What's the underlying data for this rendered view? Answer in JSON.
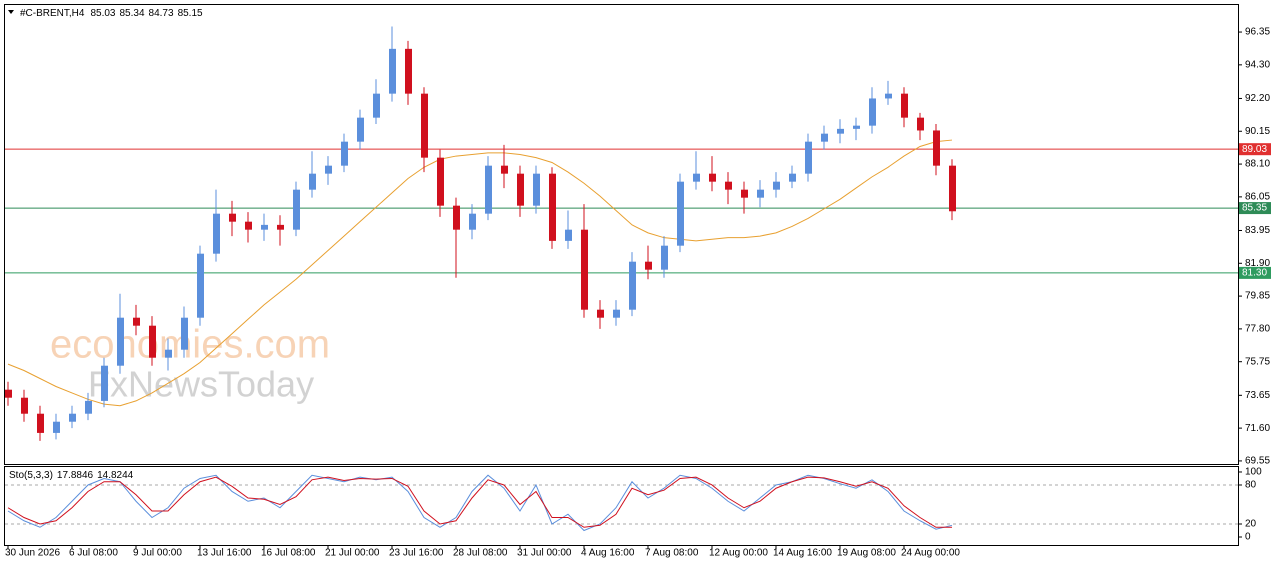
{
  "chart_data": {
    "type": "candlestick",
    "header": {
      "symbol": "#C-BRENT,H4",
      "open": 85.03,
      "high": 85.34,
      "low": 84.73,
      "close": 85.15
    },
    "watermark": [
      "economies.com",
      "FxNewsToday"
    ],
    "categories": [
      "30 Jun 2026",
      null,
      null,
      null,
      "6 Jul 08:00",
      null,
      null,
      null,
      "9 Jul 00:00",
      null,
      null,
      null,
      "13 Jul 16:00",
      null,
      null,
      null,
      "16 Jul 08:00",
      null,
      null,
      null,
      "21 Jul 00:00",
      null,
      null,
      null,
      "23 Jul 16:00",
      null,
      null,
      null,
      "28 Jul 08:00",
      null,
      null,
      null,
      "31 Jul 00:00",
      null,
      null,
      null,
      "4 Aug 16:00",
      null,
      null,
      null,
      "7 Aug 08:00",
      null,
      null,
      null,
      "12 Aug 00:00",
      null,
      null,
      null,
      "14 Aug 16:00",
      null,
      null,
      null,
      "19 Aug 08:00",
      null,
      null,
      null,
      "24 Aug 00:00",
      null,
      null,
      null
    ],
    "open": [
      74.0,
      73.5,
      72.5,
      71.3,
      72.0,
      72.5,
      73.3,
      75.5,
      78.5,
      78.0,
      76.0,
      76.5,
      78.5,
      82.5,
      85.0,
      84.5,
      84.0,
      84.3,
      84.0,
      86.5,
      87.5,
      88.0,
      89.5,
      91.0,
      92.5,
      95.3,
      92.5,
      88.5,
      85.5,
      84.0,
      85.0,
      88.0,
      87.5,
      85.5,
      87.5,
      83.3,
      84.0,
      79.0,
      78.5,
      79.0,
      82.0,
      81.5,
      83.0,
      87.0,
      87.5,
      87.0,
      86.5,
      86.0,
      86.5,
      87.0,
      87.5,
      89.5,
      90.0,
      90.3,
      90.5,
      92.2,
      92.5,
      91.0,
      90.2,
      88.0
    ],
    "high": [
      74.5,
      74.0,
      73.0,
      72.5,
      73.0,
      73.8,
      76.0,
      80.0,
      79.3,
      78.6,
      77.2,
      79.2,
      83.0,
      86.5,
      85.8,
      85.1,
      85.0,
      84.9,
      87.0,
      88.9,
      88.6,
      90.0,
      91.5,
      93.4,
      96.7,
      95.8,
      92.9,
      89.0,
      86.0,
      85.6,
      88.6,
      89.3,
      88.0,
      88.0,
      87.9,
      85.2,
      85.6,
      79.6,
      79.6,
      82.6,
      83.0,
      83.6,
      87.5,
      88.9,
      88.6,
      87.6,
      87.0,
      87.1,
      87.6,
      88.0,
      90.0,
      90.5,
      90.9,
      91.0,
      92.9,
      93.3,
      92.9,
      91.3,
      90.6,
      88.4
    ],
    "low": [
      73.0,
      72.0,
      70.8,
      70.9,
      71.6,
      72.1,
      72.9,
      75.0,
      77.4,
      75.5,
      75.2,
      76.0,
      78.0,
      82.0,
      83.6,
      83.2,
      83.3,
      83.0,
      83.6,
      86.0,
      86.8,
      87.6,
      89.0,
      90.6,
      92.0,
      91.8,
      87.6,
      84.8,
      81.0,
      83.4,
      84.6,
      86.6,
      84.8,
      85.0,
      82.8,
      82.8,
      78.5,
      77.8,
      78.0,
      78.6,
      80.9,
      81.0,
      82.6,
      86.5,
      86.4,
      85.6,
      85.0,
      85.4,
      86.0,
      86.6,
      87.0,
      89.0,
      89.4,
      89.6,
      90.0,
      91.8,
      90.4,
      89.6,
      87.4,
      84.6
    ],
    "close": [
      73.5,
      72.5,
      71.3,
      72.0,
      72.5,
      73.3,
      75.5,
      78.5,
      78.0,
      76.0,
      76.5,
      78.5,
      82.5,
      85.0,
      84.5,
      84.0,
      84.3,
      84.0,
      86.5,
      87.5,
      88.0,
      89.5,
      91.0,
      92.5,
      95.3,
      92.5,
      88.5,
      85.5,
      84.0,
      85.0,
      88.0,
      87.5,
      85.5,
      87.5,
      83.3,
      84.0,
      79.0,
      78.5,
      79.0,
      82.0,
      81.5,
      83.0,
      87.0,
      87.5,
      87.0,
      86.5,
      86.0,
      86.5,
      87.0,
      87.5,
      89.5,
      90.0,
      90.3,
      90.5,
      92.2,
      92.5,
      91.0,
      90.2,
      88.0,
      85.15
    ],
    "up_color": "#5b8fdc",
    "down_color": "#d0101e",
    "ma": {
      "color": "#e8a030",
      "values": [
        75.6,
        75.2,
        74.7,
        74.2,
        73.8,
        73.4,
        73.1,
        73.0,
        73.3,
        73.8,
        74.4,
        75.0,
        75.7,
        76.6,
        77.5,
        78.4,
        79.3,
        80.1,
        80.9,
        81.8,
        82.7,
        83.6,
        84.5,
        85.4,
        86.3,
        87.2,
        87.9,
        88.4,
        88.6,
        88.7,
        88.8,
        88.8,
        88.7,
        88.5,
        88.2,
        87.6,
        86.9,
        86.1,
        85.2,
        84.3,
        83.8,
        83.5,
        83.4,
        83.3,
        83.4,
        83.5,
        83.5,
        83.6,
        83.8,
        84.2,
        84.7,
        85.3,
        85.9,
        86.6,
        87.3,
        87.9,
        88.6,
        89.2,
        89.5,
        89.6
      ]
    },
    "levels": [
      {
        "value": 89.03,
        "color": "#e03030"
      },
      {
        "value": 85.35,
        "color": "#2e8b57"
      },
      {
        "value": 81.3,
        "label": "81.30",
        "color": "#2e9b5f"
      }
    ],
    "ylim": [
      69.42,
      98.04
    ],
    "yticks": [
      96.35,
      {
        "value": 94.3,
        "label": "94.30"
      },
      {
        "value": 92.2,
        "label": "92.20"
      },
      90.15,
      {
        "value": 88.1,
        "label": "88.10"
      },
      86.05,
      83.95,
      {
        "value": 81.9,
        "label": "81.90"
      },
      79.85,
      {
        "value": 77.8,
        "label": "77.80"
      },
      75.75,
      73.65,
      {
        "value": 71.6,
        "label": "71.60"
      },
      69.55
    ],
    "stochastic": {
      "name": "Sto(5,3,3)",
      "main_last": 17.8846,
      "signal_last": 14.8244,
      "main_color": "#5b8fdc",
      "signal_color": "#d0101e",
      "main": [
        40,
        25,
        15,
        30,
        55,
        80,
        90,
        85,
        55,
        30,
        45,
        75,
        90,
        95,
        70,
        55,
        60,
        45,
        70,
        95,
        90,
        85,
        92,
        88,
        92,
        70,
        30,
        15,
        30,
        70,
        95,
        75,
        40,
        80,
        20,
        35,
        10,
        20,
        45,
        85,
        60,
        75,
        95,
        90,
        75,
        55,
        40,
        60,
        80,
        85,
        95,
        90,
        82,
        75,
        88,
        70,
        40,
        25,
        12,
        18
      ],
      "signal": [
        45,
        30,
        20,
        25,
        45,
        70,
        85,
        85,
        65,
        40,
        40,
        65,
        85,
        92,
        78,
        60,
        58,
        50,
        62,
        88,
        92,
        87,
        90,
        89,
        90,
        78,
        40,
        20,
        25,
        60,
        88,
        80,
        50,
        70,
        30,
        30,
        15,
        18,
        35,
        75,
        65,
        72,
        90,
        92,
        80,
        60,
        45,
        55,
        75,
        85,
        92,
        91,
        85,
        78,
        85,
        75,
        48,
        30,
        15,
        15
      ],
      "ylim": [
        -12.3,
        109.2
      ],
      "yticks": [
        100,
        80,
        20,
        0
      ],
      "levels": [
        80,
        20
      ]
    }
  }
}
